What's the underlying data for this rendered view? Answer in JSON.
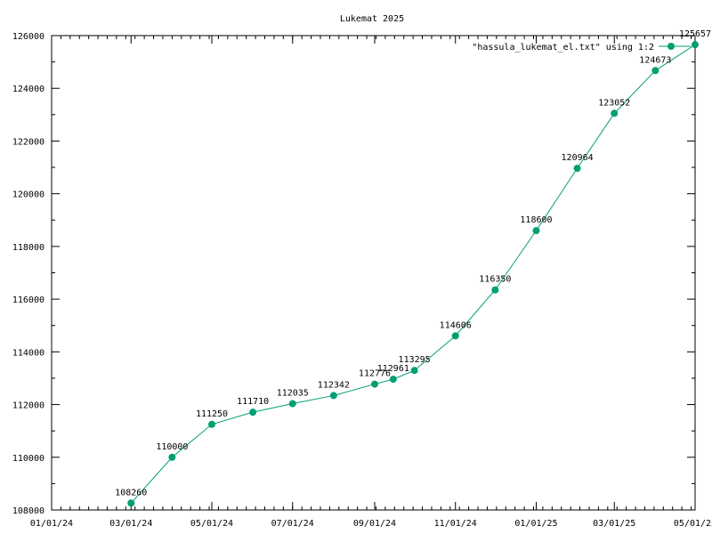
{
  "chart_data": {
    "type": "line",
    "title": "Lukemat 2025",
    "xlabel": "",
    "ylabel": "",
    "ylim": [
      108000,
      126000
    ],
    "yticks": [
      108000,
      110000,
      112000,
      114000,
      116000,
      118000,
      120000,
      122000,
      124000,
      126000
    ],
    "xlim": [
      "2024-01-01",
      "2025-05-01"
    ],
    "xticks": [
      {
        "date": "2024-01-01",
        "label": "01/01/24"
      },
      {
        "date": "2024-03-01",
        "label": "03/01/24"
      },
      {
        "date": "2024-05-01",
        "label": "05/01/24"
      },
      {
        "date": "2024-07-01",
        "label": "07/01/24"
      },
      {
        "date": "2024-09-01",
        "label": "09/01/24"
      },
      {
        "date": "2024-11-01",
        "label": "11/01/24"
      },
      {
        "date": "2025-01-01",
        "label": "01/01/25"
      },
      {
        "date": "2025-03-01",
        "label": "03/01/25"
      },
      {
        "date": "2025-05-01",
        "label": "05/01/25"
      }
    ],
    "grid": false,
    "legend_position": "top-right",
    "color": "#009e73",
    "series": [
      {
        "name": "\"hassula_lukemat_el.txt\" using 1:2",
        "points": [
          {
            "x": "2024-03-01",
            "y": 108260
          },
          {
            "x": "2024-04-01",
            "y": 110000
          },
          {
            "x": "2024-05-01",
            "y": 111250
          },
          {
            "x": "2024-06-01",
            "y": 111710
          },
          {
            "x": "2024-07-01",
            "y": 112035
          },
          {
            "x": "2024-08-01",
            "y": 112342
          },
          {
            "x": "2024-09-01",
            "y": 112776
          },
          {
            "x": "2024-09-15",
            "y": 112961
          },
          {
            "x": "2024-10-01",
            "y": 113295
          },
          {
            "x": "2024-11-01",
            "y": 114606
          },
          {
            "x": "2024-12-01",
            "y": 116350
          },
          {
            "x": "2025-01-01",
            "y": 118600
          },
          {
            "x": "2025-02-01",
            "y": 120964
          },
          {
            "x": "2025-03-01",
            "y": 123052
          },
          {
            "x": "2025-04-01",
            "y": 124673
          },
          {
            "x": "2025-05-01",
            "y": 125657
          }
        ]
      }
    ]
  }
}
